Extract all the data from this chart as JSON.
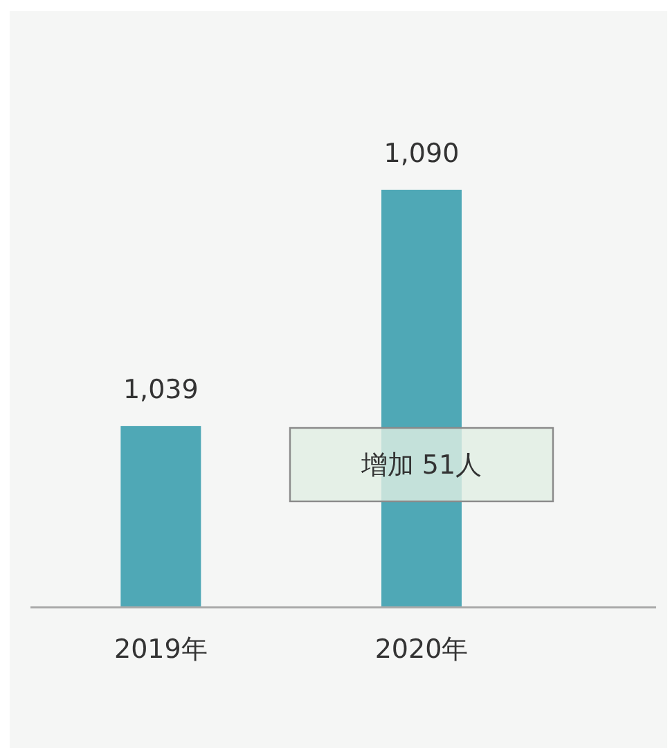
{
  "chart_data": {
    "type": "bar",
    "categories": [
      "2019年",
      "2020年"
    ],
    "values": [
      1039,
      1090
    ],
    "color": "#4fa8b6",
    "ylim": [
      1000,
      1090
    ],
    "data_labels": true,
    "value_labels": [
      "1,039",
      "1,090"
    ],
    "annotations": [
      "增加 51人"
    ]
  }
}
